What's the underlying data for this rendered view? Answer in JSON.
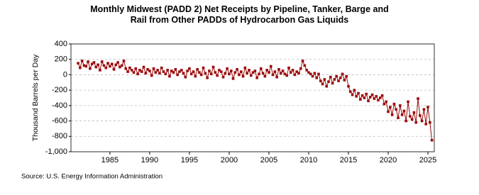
{
  "chart_data": {
    "type": "line",
    "title": "Monthly Midwest (PADD 2) Net Receipts by Pipeline, Tanker, Barge and Rail from Other PADDs of Hydrocarbon Gas Liquids",
    "y_label": "Thousand Barrels per Day",
    "source": "Source: U.S. Energy Information Administration",
    "color": "#9b0a0a",
    "grid": true,
    "xlim": [
      1980.1,
      2025.8
    ],
    "xticks": [
      1985,
      1990,
      1995,
      2000,
      2005,
      2010,
      2015,
      2020,
      2025
    ],
    "ylim": [
      -1000,
      400
    ],
    "yticks": [
      {
        "value": -1000,
        "label": "-1,000"
      },
      -800,
      -600,
      -400,
      -200,
      0,
      200,
      400
    ],
    "x": [
      1981,
      1981.25,
      1981.5,
      1981.75,
      1982,
      1982.25,
      1982.5,
      1982.75,
      1983,
      1983.25,
      1983.5,
      1983.75,
      1984,
      1984.25,
      1984.5,
      1984.75,
      1985,
      1985.25,
      1985.5,
      1985.75,
      1986,
      1986.25,
      1986.5,
      1986.75,
      1987,
      1987.25,
      1987.5,
      1987.75,
      1988,
      1988.25,
      1988.5,
      1988.75,
      1989,
      1989.25,
      1989.5,
      1989.75,
      1990,
      1990.25,
      1990.5,
      1990.75,
      1991,
      1991.25,
      1991.5,
      1991.75,
      1992,
      1992.25,
      1992.5,
      1992.75,
      1993,
      1993.25,
      1993.5,
      1993.75,
      1994,
      1994.25,
      1994.5,
      1994.75,
      1995,
      1995.25,
      1995.5,
      1995.75,
      1996,
      1996.25,
      1996.5,
      1996.75,
      1997,
      1997.25,
      1997.5,
      1997.75,
      1998,
      1998.25,
      1998.5,
      1998.75,
      1999,
      1999.25,
      1999.5,
      1999.75,
      2000,
      2000.25,
      2000.5,
      2000.75,
      2001,
      2001.25,
      2001.5,
      2001.75,
      2002,
      2002.25,
      2002.5,
      2002.75,
      2003,
      2003.25,
      2003.5,
      2003.75,
      2004,
      2004.25,
      2004.5,
      2004.75,
      2005,
      2005.25,
      2005.5,
      2005.75,
      2006,
      2006.25,
      2006.5,
      2006.75,
      2007,
      2007.25,
      2007.5,
      2007.75,
      2008,
      2008.25,
      2008.5,
      2008.75,
      2009,
      2009.25,
      2009.5,
      2009.75,
      2010,
      2010.25,
      2010.5,
      2010.75,
      2011,
      2011.25,
      2011.5,
      2011.75,
      2012,
      2012.25,
      2012.5,
      2012.75,
      2013,
      2013.25,
      2013.5,
      2013.75,
      2014,
      2014.25,
      2014.5,
      2014.75,
      2015,
      2015.25,
      2015.5,
      2015.75,
      2016,
      2016.25,
      2016.5,
      2016.75,
      2017,
      2017.25,
      2017.5,
      2017.75,
      2018,
      2018.25,
      2018.5,
      2018.75,
      2019,
      2019.25,
      2019.5,
      2019.75,
      2020,
      2020.25,
      2020.5,
      2020.75,
      2021,
      2021.25,
      2021.5,
      2021.75,
      2022,
      2022.25,
      2022.5,
      2022.75,
      2023,
      2023.25,
      2023.5,
      2023.75,
      2024,
      2024.25,
      2024.5,
      2024.75,
      2025,
      2025.25,
      2025.5
    ],
    "values": [
      150,
      90,
      180,
      120,
      110,
      170,
      80,
      140,
      160,
      100,
      130,
      60,
      170,
      120,
      90,
      150,
      110,
      140,
      70,
      130,
      160,
      100,
      120,
      180,
      80,
      40,
      90,
      60,
      30,
      80,
      10,
      60,
      40,
      100,
      20,
      70,
      50,
      -10,
      80,
      30,
      60,
      20,
      90,
      40,
      10,
      60,
      -20,
      50,
      30,
      70,
      0,
      40,
      60,
      20,
      -30,
      50,
      80,
      10,
      40,
      -20,
      70,
      30,
      0,
      90,
      20,
      -40,
      50,
      10,
      100,
      30,
      -10,
      60,
      40,
      -30,
      20,
      80,
      10,
      50,
      -50,
      30,
      70,
      0,
      40,
      -20,
      90,
      20,
      60,
      -10,
      30,
      50,
      -40,
      10,
      80,
      20,
      -20,
      60,
      30,
      110,
      0,
      40,
      -30,
      70,
      20,
      50,
      10,
      -10,
      90,
      30,
      60,
      0,
      40,
      20,
      80,
      180,
      120,
      60,
      30,
      10,
      -20,
      20,
      -40,
      10,
      -80,
      -120,
      -60,
      -150,
      -90,
      -30,
      -110,
      -60,
      -20,
      -80,
      -40,
      10,
      -70,
      -20,
      -150,
      -220,
      -260,
      -200,
      -280,
      -240,
      -320,
      -270,
      -300,
      -250,
      -340,
      -290,
      -260,
      -310,
      -280,
      -330,
      -300,
      -270,
      -380,
      -350,
      -480,
      -420,
      -520,
      -380,
      -450,
      -560,
      -400,
      -520,
      -470,
      -600,
      -350,
      -540,
      -580,
      -490,
      -620,
      -310,
      -530,
      -600,
      -450,
      -640,
      -420,
      -620,
      -850
    ]
  }
}
